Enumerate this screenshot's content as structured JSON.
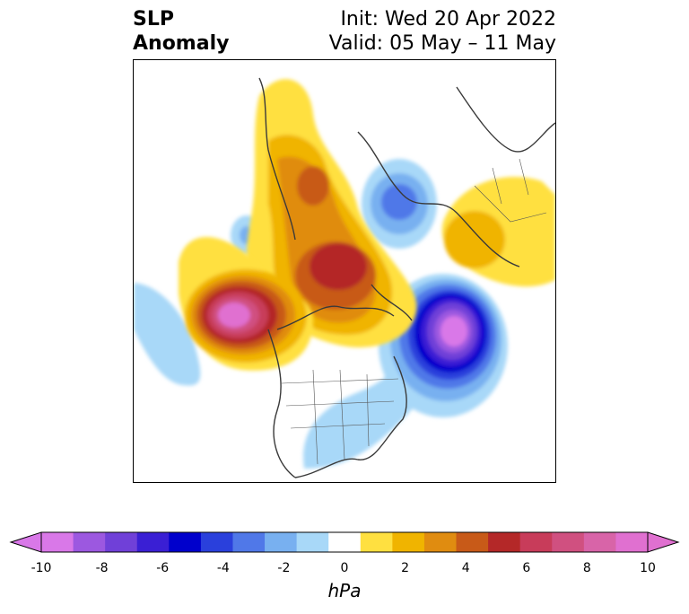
{
  "title": {
    "left_line1": "SLP",
    "left_line2": "Anomaly",
    "right_line1": "Init: Wed 20 Apr 2022",
    "right_line2": "Valid: 05 May – 11 May"
  },
  "colorbar": {
    "label": "hPa",
    "min": -10,
    "max": 10,
    "ticks": [
      "-10",
      "-8",
      "-6",
      "-4",
      "-2",
      "0",
      "2",
      "4",
      "6",
      "8",
      "10"
    ],
    "colors": [
      "#d978e8",
      "#9c58e0",
      "#7040d8",
      "#3a1fd4",
      "#0000cc",
      "#2a40dc",
      "#5078e8",
      "#78b0f0",
      "#a8d8f8",
      "#ffffff",
      "#ffe040",
      "#f0b400",
      "#e08c10",
      "#c85a18",
      "#b42828",
      "#c83c5a",
      "#d05080",
      "#d864a8",
      "#e070d0"
    ]
  },
  "map": {
    "projection": "polar-stereographic",
    "variable": "SLP Anomaly"
  }
}
